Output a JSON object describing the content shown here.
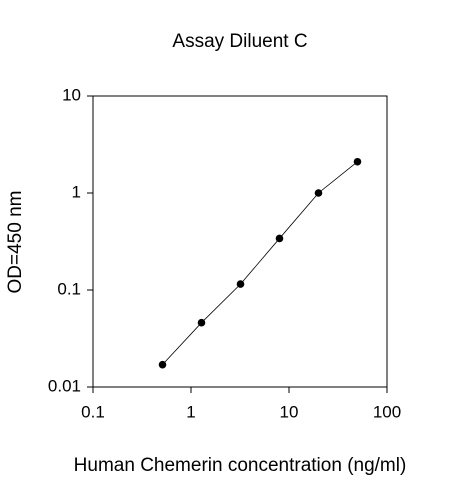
{
  "chart_data": {
    "type": "scatter",
    "title": "Assay Diluent C",
    "x_label": "Human Chemerin concentration (ng/ml)",
    "y_label": "OD=450 nm",
    "log_x": true,
    "log_y": true,
    "series": [
      {
        "x": [
          0.512,
          1.28,
          3.2,
          8,
          20,
          50
        ],
        "values": [
          0.017,
          0.046,
          0.115,
          0.34,
          1.0,
          2.1
        ],
        "color": "#000000"
      }
    ],
    "xlim": [
      0.1,
      100
    ],
    "xticks": [
      0.1,
      1,
      10,
      100
    ],
    "ylim": [
      0.01,
      10
    ],
    "yticks": [
      0.01,
      0.1,
      1,
      10
    ]
  }
}
